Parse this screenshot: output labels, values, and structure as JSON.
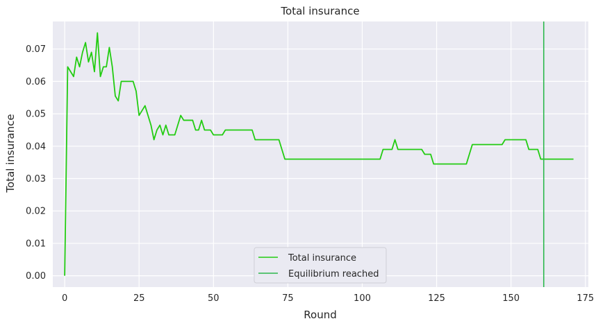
{
  "chart_data": {
    "type": "line",
    "title": "Total insurance",
    "xlabel": "Round",
    "ylabel": "Total insurance",
    "xlim": [
      -4,
      176
    ],
    "ylim": [
      -0.0035,
      0.0785
    ],
    "x_ticks": [
      0,
      25,
      50,
      75,
      100,
      125,
      150,
      175
    ],
    "y_ticks": [
      0.0,
      0.01,
      0.02,
      0.03,
      0.04,
      0.05,
      0.06,
      0.07
    ],
    "x_tick_labels": [
      "0",
      "25",
      "50",
      "75",
      "100",
      "125",
      "150",
      "175"
    ],
    "y_tick_labels": [
      "0.00",
      "0.01",
      "0.02",
      "0.03",
      "0.04",
      "0.05",
      "0.06",
      "0.07"
    ],
    "grid": true,
    "legend_position": "lower-center",
    "series": [
      {
        "name": "Total insurance",
        "color": "#22cc11",
        "points": [
          [
            0,
            0.0
          ],
          [
            1,
            0.0645
          ],
          [
            3,
            0.0615
          ],
          [
            4,
            0.0675
          ],
          [
            5,
            0.0645
          ],
          [
            6,
            0.069
          ],
          [
            7,
            0.072
          ],
          [
            8,
            0.066
          ],
          [
            9,
            0.069
          ],
          [
            10,
            0.063
          ],
          [
            11,
            0.075
          ],
          [
            12,
            0.0615
          ],
          [
            13,
            0.0645
          ],
          [
            14,
            0.0645
          ],
          [
            15,
            0.0705
          ],
          [
            16,
            0.0645
          ],
          [
            17,
            0.0555
          ],
          [
            18,
            0.054
          ],
          [
            19,
            0.06
          ],
          [
            23,
            0.06
          ],
          [
            24,
            0.057
          ],
          [
            25,
            0.0495
          ],
          [
            27,
            0.0525
          ],
          [
            29,
            0.0465
          ],
          [
            30,
            0.042
          ],
          [
            31,
            0.045
          ],
          [
            32,
            0.0465
          ],
          [
            33,
            0.0435
          ],
          [
            34,
            0.0465
          ],
          [
            35,
            0.0435
          ],
          [
            37,
            0.0435
          ],
          [
            39,
            0.0495
          ],
          [
            40,
            0.048
          ],
          [
            43,
            0.048
          ],
          [
            44,
            0.045
          ],
          [
            45,
            0.045
          ],
          [
            46,
            0.048
          ],
          [
            47,
            0.045
          ],
          [
            49,
            0.045
          ],
          [
            50,
            0.0435
          ],
          [
            53,
            0.0435
          ],
          [
            54,
            0.045
          ],
          [
            63,
            0.045
          ],
          [
            64,
            0.042
          ],
          [
            72,
            0.042
          ],
          [
            74,
            0.036
          ],
          [
            106,
            0.036
          ],
          [
            107,
            0.039
          ],
          [
            110,
            0.039
          ],
          [
            111,
            0.042
          ],
          [
            112,
            0.039
          ],
          [
            120,
            0.039
          ],
          [
            121,
            0.0375
          ],
          [
            123,
            0.0375
          ],
          [
            124,
            0.0345
          ],
          [
            135,
            0.0345
          ],
          [
            137,
            0.0405
          ],
          [
            147,
            0.0405
          ],
          [
            148,
            0.042
          ],
          [
            155,
            0.042
          ],
          [
            156,
            0.039
          ],
          [
            159,
            0.039
          ],
          [
            160,
            0.036
          ],
          [
            171,
            0.036
          ]
        ]
      },
      {
        "name": "Equilibrium reached",
        "color": "#2db84d",
        "vertical_line_x": 161
      }
    ]
  }
}
